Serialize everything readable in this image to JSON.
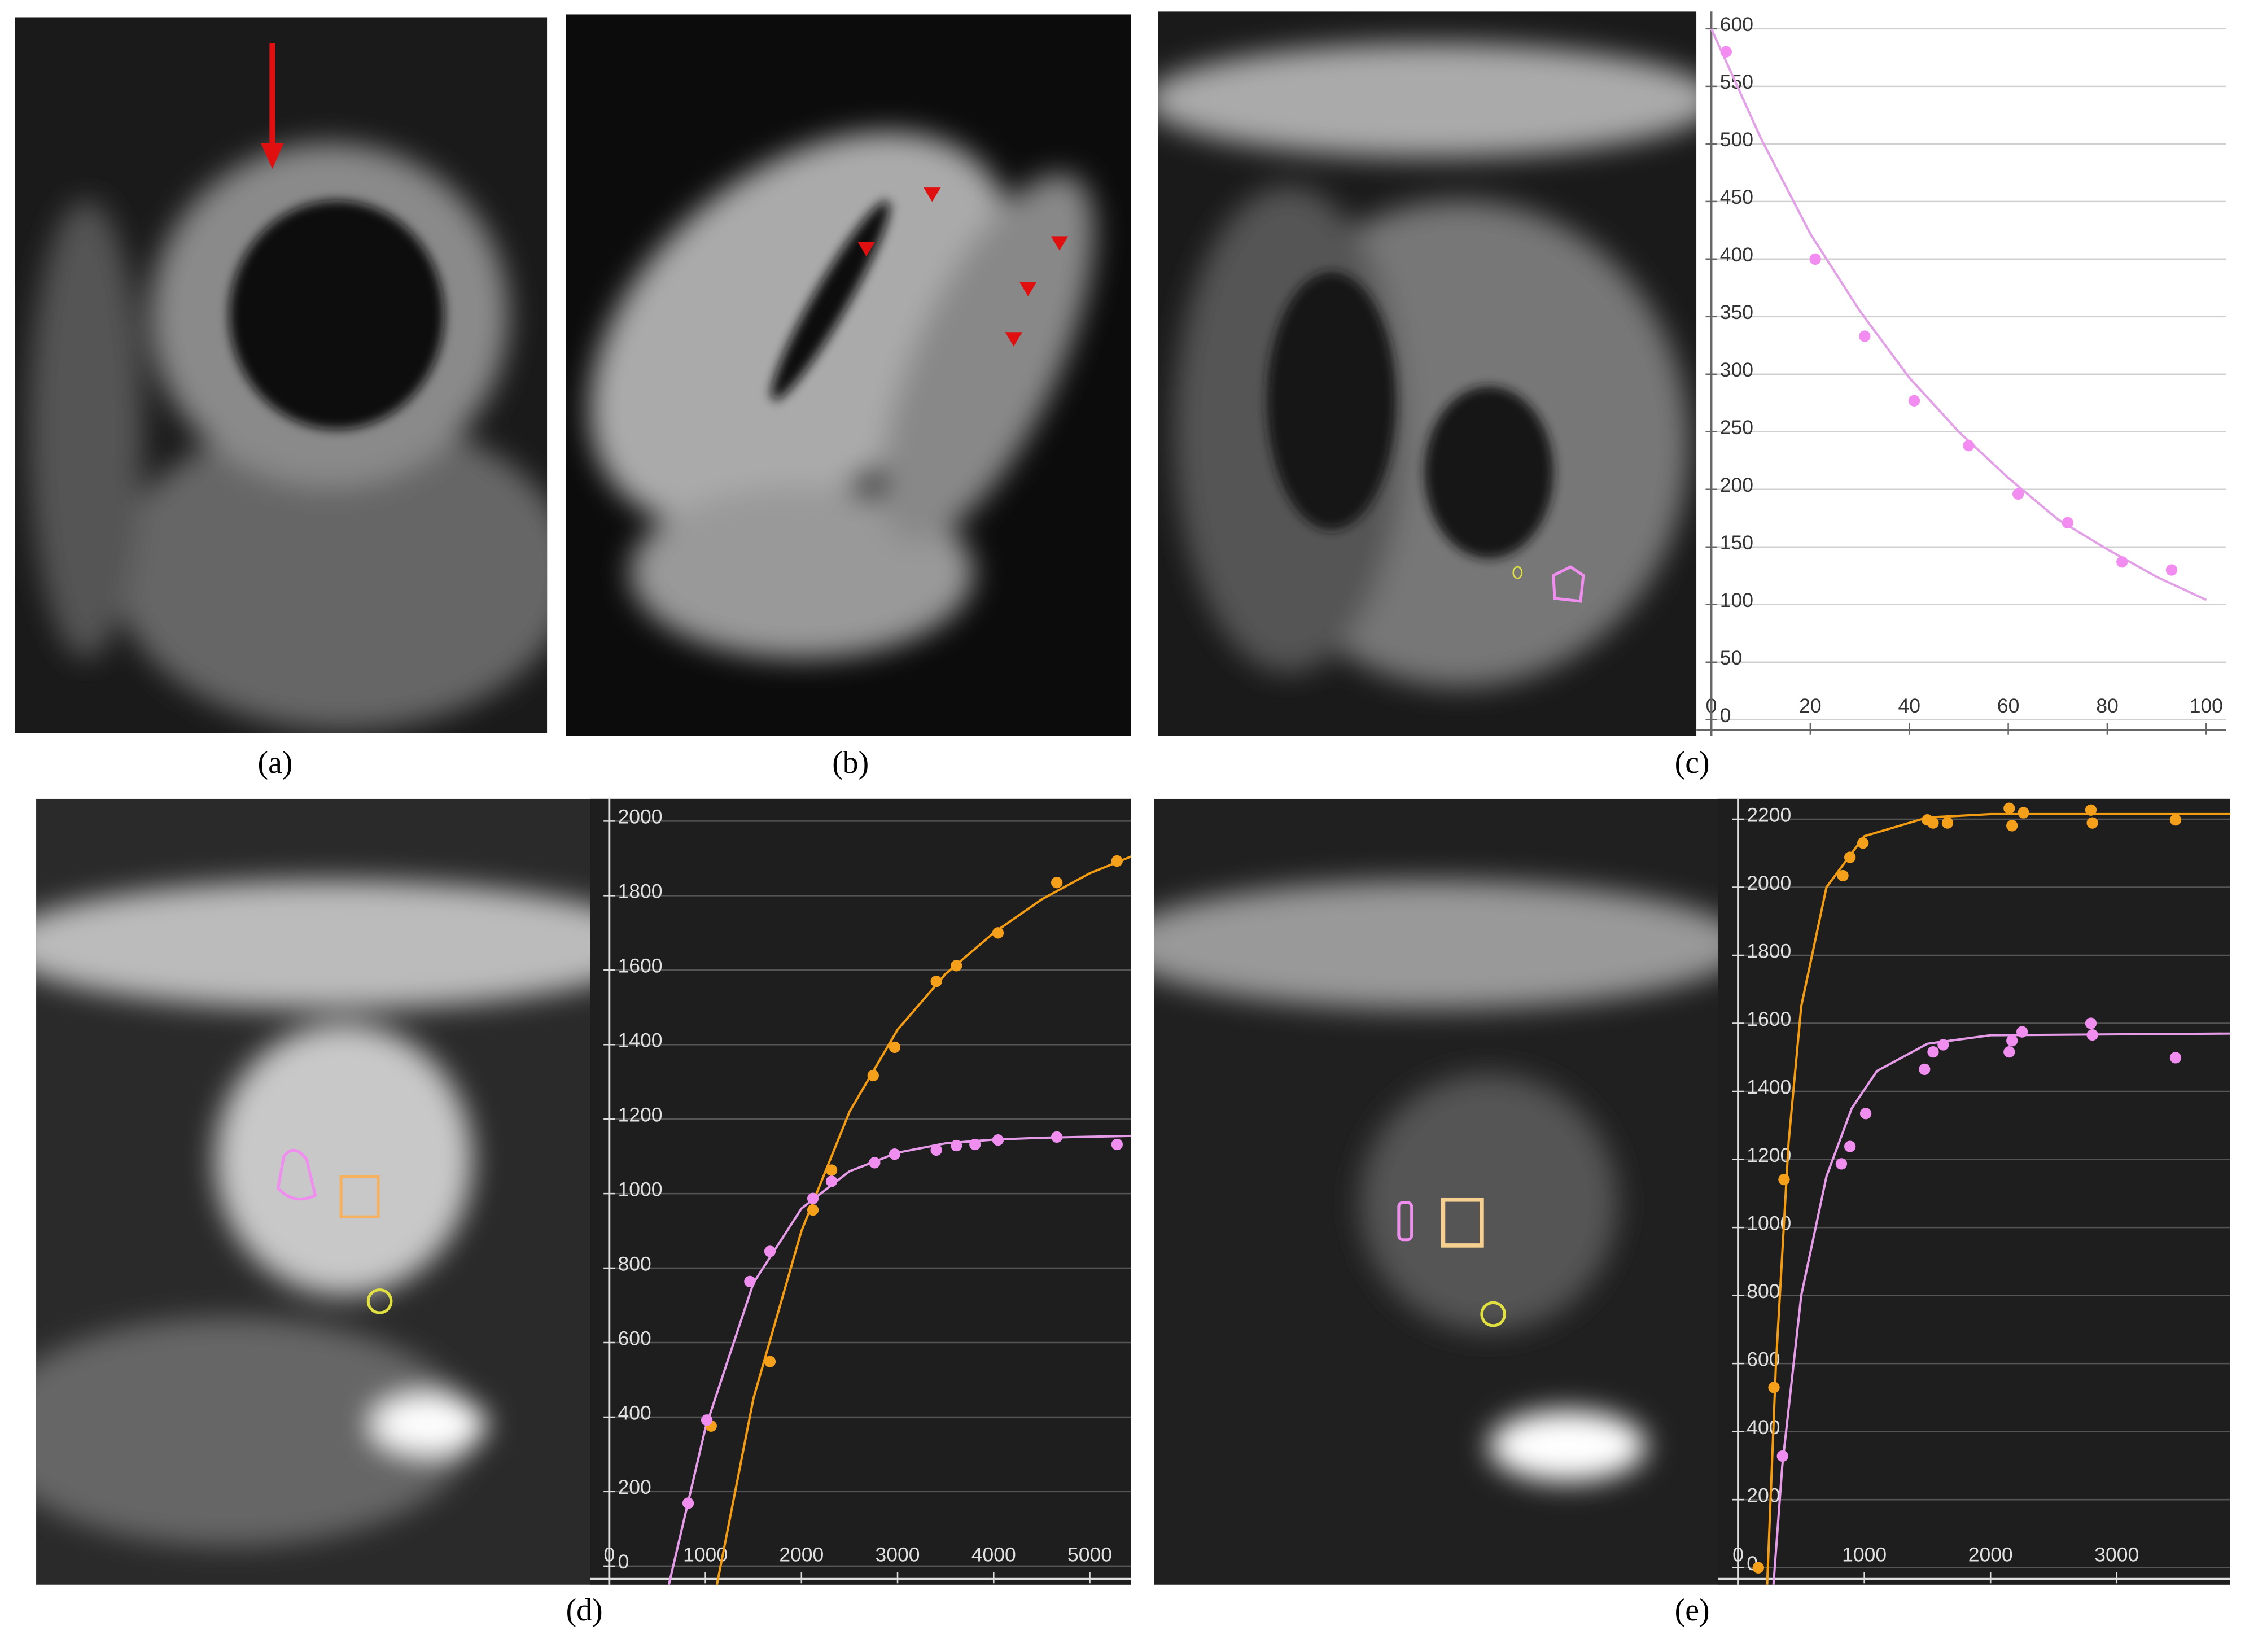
{
  "panel_labels": [
    "(a)",
    "(b)",
    "(c)",
    "(d)",
    "(e)"
  ],
  "chart_data": [
    {
      "type": "scatter",
      "xlim": [
        -3,
        104
      ],
      "ylim": [
        -14,
        615
      ],
      "xticks": [
        0,
        20,
        40,
        60,
        80,
        100
      ],
      "yticks": [
        0,
        50,
        100,
        150,
        200,
        250,
        300,
        350,
        400,
        450,
        500,
        550,
        600
      ],
      "grid": true,
      "series": [
        {
          "mode": "line",
          "color": "#e2a0e6",
          "x": [
            0,
            10,
            20,
            30,
            40,
            50,
            60,
            70,
            80,
            90,
            100
          ],
          "values": [
            600,
            505,
            422,
            355,
            297,
            250,
            210,
            174,
            148,
            124,
            104
          ]
        },
        {
          "mode": "markers",
          "color": "#f28cf0",
          "x": [
            3,
            21,
            31,
            41,
            52,
            62,
            72,
            83,
            93
          ],
          "values": [
            580,
            400,
            333,
            277,
            238,
            196,
            171,
            137,
            130
          ]
        }
      ]
    },
    {
      "type": "scatter",
      "xlim": [
        -200,
        5430
      ],
      "ylim": [
        -50,
        2060
      ],
      "xticks": [
        0,
        1000,
        2000,
        3000,
        4000,
        5000
      ],
      "yticks": [
        0,
        200,
        400,
        600,
        800,
        1000,
        1200,
        1400,
        1600,
        1800,
        2000
      ],
      "grid": true,
      "series": [
        {
          "mode": "line",
          "color": "#f39c12",
          "x": [
            1120,
            1500,
            2000,
            2500,
            3000,
            3500,
            4000,
            4500,
            5000,
            5430
          ],
          "values": [
            -50,
            450,
            900,
            1220,
            1440,
            1590,
            1700,
            1790,
            1860,
            1905
          ]
        },
        {
          "mode": "line",
          "color": "#e59be8",
          "x": [
            620,
            1000,
            1500,
            2000,
            2500,
            3000,
            3500,
            4000,
            4500,
            5430
          ],
          "values": [
            -50,
            370,
            760,
            960,
            1060,
            1110,
            1135,
            1145,
            1150,
            1155
          ]
        },
        {
          "mode": "markers",
          "color": "#f5a01a",
          "x": [
            1060,
            1672,
            2119,
            2313,
            2746,
            2970,
            3403,
            3612,
            4045,
            4657,
            5284
          ],
          "values": [
            376,
            549,
            956,
            1063,
            1317,
            1393,
            1570,
            1612,
            1700,
            1835,
            1893
          ]
        },
        {
          "mode": "markers",
          "color": "#f08ef0",
          "x": [
            821,
            1015,
            1463,
            1672,
            2119,
            2313,
            2761,
            2970,
            3403,
            3612,
            3806,
            4045,
            4657,
            5284
          ],
          "values": [
            169,
            392,
            764,
            845,
            987,
            1033,
            1083,
            1106,
            1117,
            1129,
            1132,
            1144,
            1152,
            1132
          ]
        }
      ]
    },
    {
      "type": "scatter",
      "xlim": [
        -160,
        3900
      ],
      "ylim": [
        -50,
        2260
      ],
      "xticks": [
        0,
        1000,
        2000,
        3000
      ],
      "yticks": [
        0,
        200,
        400,
        600,
        800,
        1000,
        1200,
        1400,
        1600,
        1800,
        2000,
        2200
      ],
      "grid": true,
      "series": [
        {
          "mode": "line",
          "color": "#f39c12",
          "x": [
            230,
            300,
            400,
            500,
            700,
            1000,
            1500,
            2000,
            3900
          ],
          "values": [
            -50,
            600,
            1250,
            1650,
            2000,
            2150,
            2205,
            2215,
            2215
          ]
        },
        {
          "mode": "line",
          "color": "#e59be8",
          "x": [
            280,
            350,
            500,
            700,
            900,
            1100,
            1500,
            2000,
            3900
          ],
          "values": [
            -50,
            300,
            800,
            1150,
            1350,
            1460,
            1540,
            1565,
            1570
          ]
        },
        {
          "mode": "markers",
          "color": "#f5a01a",
          "x": [
            160,
            284,
            364,
            830,
            886,
            989,
            1500,
            1545,
            1659,
            2148,
            2170,
            2261,
            2795,
            2807,
            3466
          ],
          "values": [
            0,
            530,
            1141,
            2034,
            2088,
            2130,
            2198,
            2189,
            2189,
            2232,
            2181,
            2219,
            2227,
            2189,
            2198
          ]
        },
        {
          "mode": "markers",
          "color": "#f08ef0",
          "x": [
            352,
            818,
            886,
            1011,
            1477,
            1545,
            1625,
            2148,
            2170,
            2250,
            2795,
            2807,
            3466
          ],
          "values": [
            328,
            1187,
            1238,
            1335,
            1465,
            1516,
            1537,
            1516,
            1549,
            1575,
            1600,
            1566,
            1499
          ]
        }
      ]
    }
  ]
}
